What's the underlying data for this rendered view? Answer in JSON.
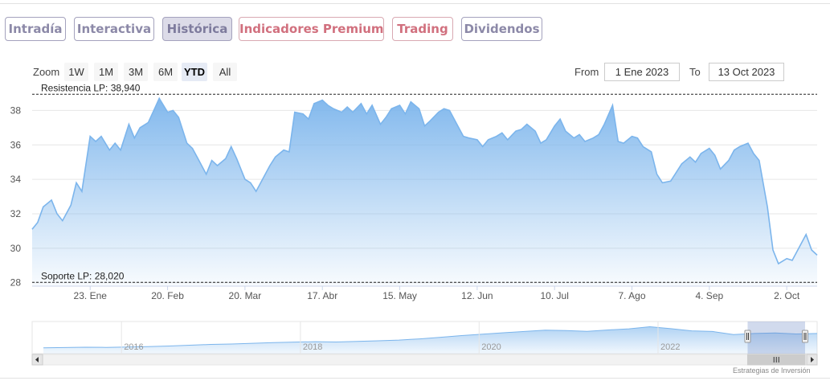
{
  "tabs": [
    {
      "label": "Intradía",
      "active": false
    },
    {
      "label": "Interactiva",
      "active": false
    },
    {
      "label": "Histórica",
      "active": true
    },
    {
      "label": "Indicadores Premium",
      "active": false
    },
    {
      "label": "Trading",
      "active": false
    },
    {
      "label": "Dividendos",
      "active": false
    }
  ],
  "zoom": {
    "label": "Zoom",
    "buttons": [
      "1W",
      "1M",
      "3M",
      "6M",
      "YTD",
      "All"
    ],
    "active": "YTD"
  },
  "range": {
    "from_label": "From",
    "from_value": "1 Ene 2023",
    "to_label": "To",
    "to_value": "13 Oct 2023"
  },
  "colors": {
    "line": "#7cb5ec",
    "tab_border": "#a4a2bd",
    "premium": "#d1707e"
  },
  "credit": "Estrategias de Inversión",
  "chart_data": {
    "type": "area",
    "xlabel": "",
    "ylabel": "",
    "ylim": [
      27.8,
      39.0
    ],
    "y_ticks": [
      28,
      30,
      32,
      34,
      36,
      38
    ],
    "x_range": [
      "2023-01-02",
      "2023-10-13"
    ],
    "x_ticks": [
      {
        "date": "2023-01-23",
        "label": "23. Ene"
      },
      {
        "date": "2023-02-20",
        "label": "20. Feb"
      },
      {
        "date": "2023-03-20",
        "label": "20. Mar"
      },
      {
        "date": "2023-04-17",
        "label": "17. Abr"
      },
      {
        "date": "2023-05-15",
        "label": "15. May"
      },
      {
        "date": "2023-06-12",
        "label": "12. Jun"
      },
      {
        "date": "2023-07-10",
        "label": "10. Jul"
      },
      {
        "date": "2023-08-07",
        "label": "7. Ago"
      },
      {
        "date": "2023-09-04",
        "label": "4. Sep"
      },
      {
        "date": "2023-10-02",
        "label": "2. Oct"
      }
    ],
    "grid": true,
    "annotations": [
      {
        "label": "Resistencia LP: 38,940",
        "value": 38.94
      },
      {
        "label": "Soporte LP: 28,020",
        "value": 28.02
      }
    ],
    "series": [
      {
        "x": [
          "2023-01-02",
          "2023-01-04",
          "2023-01-06",
          "2023-01-09",
          "2023-01-11",
          "2023-01-13",
          "2023-01-16",
          "2023-01-18",
          "2023-01-20",
          "2023-01-23",
          "2023-01-25",
          "2023-01-27",
          "2023-01-30",
          "2023-02-01",
          "2023-02-03",
          "2023-02-06",
          "2023-02-08",
          "2023-02-10",
          "2023-02-13",
          "2023-02-15",
          "2023-02-17",
          "2023-02-20",
          "2023-02-22",
          "2023-02-24",
          "2023-02-27",
          "2023-03-01",
          "2023-03-03",
          "2023-03-06",
          "2023-03-08",
          "2023-03-10",
          "2023-03-13",
          "2023-03-15",
          "2023-03-17",
          "2023-03-20",
          "2023-03-22",
          "2023-03-24",
          "2023-03-27",
          "2023-03-29",
          "2023-03-31",
          "2023-04-03",
          "2023-04-05",
          "2023-04-07",
          "2023-04-10",
          "2023-04-12",
          "2023-04-14",
          "2023-04-17",
          "2023-04-19",
          "2023-04-21",
          "2023-04-24",
          "2023-04-26",
          "2023-04-28",
          "2023-05-01",
          "2023-05-03",
          "2023-05-05",
          "2023-05-08",
          "2023-05-10",
          "2023-05-12",
          "2023-05-15",
          "2023-05-17",
          "2023-05-19",
          "2023-05-22",
          "2023-05-24",
          "2023-05-26",
          "2023-05-29",
          "2023-05-31",
          "2023-06-02",
          "2023-06-05",
          "2023-06-07",
          "2023-06-09",
          "2023-06-12",
          "2023-06-14",
          "2023-06-16",
          "2023-06-19",
          "2023-06-21",
          "2023-06-23",
          "2023-06-26",
          "2023-06-28",
          "2023-06-30",
          "2023-07-03",
          "2023-07-05",
          "2023-07-07",
          "2023-07-10",
          "2023-07-12",
          "2023-07-14",
          "2023-07-17",
          "2023-07-19",
          "2023-07-21",
          "2023-07-24",
          "2023-07-26",
          "2023-07-28",
          "2023-07-31",
          "2023-08-02",
          "2023-08-04",
          "2023-08-07",
          "2023-08-09",
          "2023-08-11",
          "2023-08-14",
          "2023-08-16",
          "2023-08-18",
          "2023-08-21",
          "2023-08-23",
          "2023-08-25",
          "2023-08-28",
          "2023-08-30",
          "2023-09-01",
          "2023-09-04",
          "2023-09-06",
          "2023-09-08",
          "2023-09-11",
          "2023-09-13",
          "2023-09-15",
          "2023-09-18",
          "2023-09-20",
          "2023-09-22",
          "2023-09-25",
          "2023-09-27",
          "2023-09-29",
          "2023-10-02",
          "2023-10-04",
          "2023-10-06",
          "2023-10-09",
          "2023-10-11",
          "2023-10-13"
        ],
        "values": [
          31.1,
          31.5,
          32.4,
          32.8,
          32.0,
          31.6,
          32.5,
          33.8,
          33.3,
          36.5,
          36.2,
          36.5,
          35.7,
          36.1,
          35.7,
          37.2,
          36.4,
          37.0,
          37.3,
          38.0,
          38.7,
          37.9,
          38.0,
          37.6,
          36.1,
          35.8,
          35.2,
          34.3,
          35.1,
          34.8,
          35.2,
          35.9,
          35.2,
          34.0,
          33.8,
          33.3,
          34.2,
          34.8,
          35.3,
          35.7,
          35.6,
          37.9,
          37.8,
          37.5,
          38.4,
          38.6,
          38.3,
          38.1,
          37.9,
          38.2,
          37.9,
          38.4,
          37.8,
          38.3,
          37.2,
          37.6,
          38.1,
          38.3,
          37.8,
          38.5,
          38.1,
          37.1,
          37.4,
          37.9,
          38.1,
          38.0,
          37.1,
          36.5,
          36.4,
          36.3,
          35.9,
          36.3,
          36.5,
          36.7,
          36.3,
          36.8,
          36.9,
          37.2,
          36.8,
          36.1,
          36.3,
          37.1,
          37.5,
          36.8,
          36.4,
          36.6,
          36.2,
          36.4,
          36.6,
          37.2,
          38.3,
          36.2,
          36.1,
          36.5,
          36.4,
          35.9,
          35.6,
          34.3,
          33.8,
          33.9,
          34.4,
          34.9,
          35.3,
          35.0,
          35.5,
          35.8,
          35.4,
          34.6,
          35.1,
          35.7,
          35.9,
          36.1,
          35.5,
          35.1,
          32.4,
          29.9,
          29.1,
          29.4,
          29.3,
          29.9,
          30.8,
          29.9,
          29.6
        ]
      }
    ],
    "navigator": {
      "x_labels": [
        "2016",
        "2018",
        "2020",
        "2022"
      ],
      "x_range": [
        "2015-01-01",
        "2023-10-13"
      ],
      "selected_range": [
        "2023-01-02",
        "2023-10-13"
      ],
      "values": [
        24.0,
        24.2,
        24.4,
        24.3,
        24.5,
        24.8,
        25.2,
        25.8,
        26.3,
        26.6,
        27.1,
        27.6,
        27.9,
        28.2,
        28.0,
        28.4,
        28.8,
        29.3,
        30.1,
        31.2,
        32.4,
        33.3,
        34.3,
        35.2,
        36.1,
        35.8,
        35.3,
        36.2,
        37.0,
        38.4,
        37.1,
        35.6,
        35.2,
        33.1,
        33.8,
        34.2,
        33.5,
        33.8
      ]
    }
  }
}
